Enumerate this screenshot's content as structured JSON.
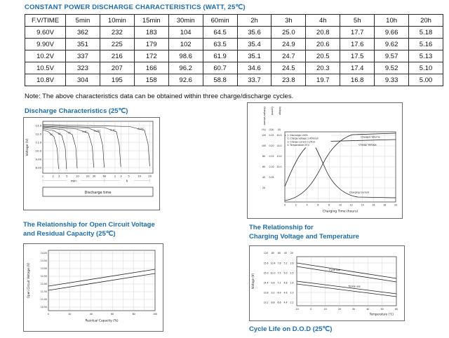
{
  "colors": {
    "title_blue": "#1b6dad",
    "text": "#111111",
    "table_border": "#2b2b2b"
  },
  "page": {
    "title": "CONSTANT POWER DISCHARGE CHARACTERISTICS (WATT, 25℃)",
    "note": "Note: The above characteristics data can be obtained within three charge/discharge cycles.",
    "cycle_life_title": "Cycle Life on D.O.D (25℃)"
  },
  "table": {
    "headers": [
      "F.V/TIME",
      "5min",
      "10min",
      "15min",
      "30min",
      "60min",
      "2h",
      "3h",
      "4h",
      "5h",
      "10h",
      "20h"
    ],
    "rows": [
      [
        "9.60V",
        "362",
        "232",
        "183",
        "104",
        "64.5",
        "35.6",
        "25.0",
        "20.8",
        "17.7",
        "9.66",
        "5.18"
      ],
      [
        "9.90V",
        "351",
        "225",
        "179",
        "102",
        "63.5",
        "35.4",
        "24.9",
        "20.6",
        "17.6",
        "9.62",
        "5.16"
      ],
      [
        "10.2V",
        "337",
        "216",
        "172",
        "98.6",
        "61.9",
        "35.1",
        "24.7",
        "20.5",
        "17.5",
        "9.57",
        "5.13"
      ],
      [
        "10.5V",
        "323",
        "207",
        "166",
        "96.2",
        "60.7",
        "34.6",
        "24.5",
        "20.3",
        "17.4",
        "9.52",
        "5.10"
      ],
      [
        "10.8V",
        "304",
        "195",
        "158",
        "92.6",
        "58.8",
        "33.7",
        "23.8",
        "19.7",
        "16.8",
        "9.33",
        "5.00"
      ]
    ]
  },
  "charts": {
    "discharge": {
      "title": "Discharge Characteristics (25℃)",
      "ylabel": "Voltage (V)",
      "xlabel": "Discharge time",
      "y_ticks": [
        "13.0",
        "12.0",
        "11.0",
        "10.0",
        "9.00",
        "8.00"
      ],
      "x_ticks": [
        "1",
        "2",
        "3",
        "5",
        "10",
        "20",
        "30",
        "60",
        "2",
        "3",
        "5",
        "10",
        "20"
      ],
      "x_units": [
        "min",
        "h"
      ],
      "curve_labels": [
        "3C",
        "2C",
        "1C",
        "0.6C",
        "0.25C",
        "0.1C",
        "0.05C"
      ]
    },
    "charge": {
      "axis_titles": [
        "Charged Volume",
        "Current",
        "Voltage"
      ],
      "axis_units": [
        "(%)",
        "(CA)",
        "(V)"
      ],
      "pct_ticks": [
        "120",
        "100",
        "80",
        "60",
        "40",
        "20"
      ],
      "ca_ticks": [
        "0.25",
        "0.20",
        "0.15",
        "0.10",
        "0.05"
      ],
      "v_ticks": [
        "15.0",
        "14.0",
        "13.0",
        "12.0"
      ],
      "x_ticks": [
        "0",
        "2",
        "4",
        "6",
        "8",
        "10",
        "12",
        "14",
        "16",
        "18",
        "20"
      ],
      "xlabel": "Charging Time (hours)",
      "legend": [
        "1. Discharge 100%",
        "2. Charge voltage 2.45V/cell",
        "3. Charge current 0.25CA",
        "4. Temperature 25℃"
      ],
      "labels": {
        "volume": "Charged Volume",
        "voltage": "Charge Voltage",
        "current": "Charging Current"
      }
    },
    "ocv": {
      "title_line1": "The Relationship for Open Circuit Voltage",
      "title_line2": "and Residual Capacity (25℃)",
      "ylabel": "Open Circuit Voltage (V)",
      "xlabel": "Residual Capacity (%)",
      "y_ticks": [
        "14.00",
        "13.50",
        "13.00",
        "12.50",
        "12.00",
        "11.50",
        "11.00",
        "10.50"
      ],
      "x_ticks": [
        "0",
        "20",
        "40",
        "60",
        "80",
        "100"
      ]
    },
    "charge_temp": {
      "title_line1": "The Relationship for",
      "title_line2": "Charging Voltage and Temperature",
      "ylabel": "Voltage (V)",
      "xlabel": "Temperature (℃)",
      "col_headers": [
        "12V",
        "8V",
        "6V",
        "4V",
        "2V"
      ],
      "v12_ticks": [
        "15.6",
        "15.0",
        "14.4",
        "13.8",
        "13.2"
      ],
      "v8_ticks": [
        "10.4",
        "10.0",
        "9.6",
        "9.2",
        "8.8"
      ],
      "v6_ticks": [
        "7.8",
        "7.5",
        "7.2",
        "6.9",
        "6.6"
      ],
      "v4_ticks": [
        "5.2",
        "5.0",
        "4.8",
        "4.6",
        "4.4"
      ],
      "v2_ticks": [
        "2.6",
        "2.5",
        "2.4",
        "2.3",
        "2.2"
      ],
      "x_ticks": [
        "-10",
        "0",
        "10",
        "20",
        "30",
        "40",
        "50",
        "60"
      ],
      "band_labels": [
        "Cycle use",
        "Trickle use"
      ]
    }
  },
  "chart_data": {
    "discharge": {
      "type": "line",
      "title": "Discharge Characteristics (25℃)",
      "xlabel": "Discharge time",
      "ylabel": "Voltage (V)",
      "x_scale": "log, 1 min to 20 h",
      "ylim": [
        8.0,
        13.0
      ],
      "series": [
        {
          "name": "3C",
          "approx_end_time_min": 3
        },
        {
          "name": "2C",
          "approx_end_time_min": 5
        },
        {
          "name": "1C",
          "approx_end_time_min": 10
        },
        {
          "name": "0.6C",
          "approx_end_time_min": 30
        },
        {
          "name": "0.25C",
          "approx_end_time_min": 60
        },
        {
          "name": "0.1C",
          "approx_end_time_h": 3
        },
        {
          "name": "0.05C",
          "approx_end_time_h": 20
        }
      ]
    },
    "charge": {
      "type": "line",
      "x": [
        0,
        2,
        4,
        6,
        8,
        10,
        12,
        14,
        16,
        18,
        20
      ],
      "xlabel": "Charging Time (hours)",
      "series": [
        {
          "name": "Charged Volume",
          "unit": "%",
          "approx": [
            0,
            15,
            40,
            70,
            90,
            105,
            115,
            118,
            120,
            120,
            120
          ]
        },
        {
          "name": "Charge Voltage",
          "unit": "V",
          "approx": [
            12.0,
            13.2,
            14.1,
            14.6,
            14.7,
            14.7,
            14.7,
            14.7,
            14.7,
            14.7,
            14.7
          ]
        },
        {
          "name": "Charging Current",
          "unit": "CA",
          "approx": [
            0.25,
            0.25,
            0.2,
            0.12,
            0.07,
            0.04,
            0.03,
            0.02,
            0.02,
            0.02,
            0.02
          ]
        }
      ],
      "conditions": [
        "1. Discharge 100%",
        "2. Charge voltage 2.45V/cell",
        "3. Charge current 0.25CA",
        "4. Temperature 25℃"
      ]
    },
    "open_circuit_voltage": {
      "type": "line",
      "xlabel": "Residual Capacity (%)",
      "ylabel": "Open Circuit Voltage (V)",
      "x": [
        0,
        100
      ],
      "ylim": [
        10.5,
        14.0
      ],
      "series": [
        {
          "name": "upper line",
          "approx": [
            11.9,
            13.0
          ]
        },
        {
          "name": "lower line",
          "approx": [
            11.7,
            12.8
          ]
        }
      ]
    },
    "charging_voltage_temperature": {
      "type": "line",
      "xlabel": "Temperature (℃)",
      "ylabel": "Voltage (V)",
      "x": [
        -10,
        60
      ],
      "series": [
        {
          "name": "Cycle use upper (12V scale)",
          "approx": [
            15.2,
            13.9
          ]
        },
        {
          "name": "Cycle use lower (12V scale)",
          "approx": [
            14.8,
            13.5
          ]
        },
        {
          "name": "Trickle use upper (12V scale)",
          "approx": [
            14.1,
            13.0
          ]
        },
        {
          "name": "Trickle use lower (12V scale)",
          "approx": [
            13.8,
            12.7
          ]
        }
      ]
    }
  }
}
